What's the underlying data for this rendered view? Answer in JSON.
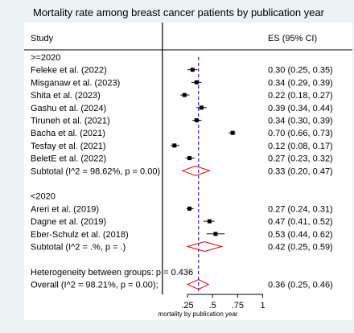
{
  "title": "Mortality rate  among breast cancer patients by publication year",
  "chart_data": {
    "type": "forest",
    "title": "Mortality rate  among breast cancer patients by publication year",
    "column_headers": {
      "study": "Study",
      "effect": "ES (95% CI)"
    },
    "xlabel": "mortality by publication year",
    "x_ticks": [
      0.25,
      0.5,
      0.75,
      1
    ],
    "x_tick_labels": [
      ".25",
      ".5",
      ".75",
      "1"
    ],
    "xlim": [
      -0.015,
      1.06
    ],
    "null_line": 0,
    "overall_line": 0.36,
    "colors": {
      "overall_line": "#1f1fb4",
      "diamond": "#e00000",
      "marker": "#000000"
    },
    "rows": [
      {
        "kind": "group",
        "label": ">=2020"
      },
      {
        "kind": "study",
        "label": "Feleke et al. (2022)",
        "es": 0.3,
        "lo": 0.25,
        "hi": 0.35,
        "text": "0.30 (0.25, 0.35)"
      },
      {
        "kind": "study",
        "label": "Misganaw et al. (2023)",
        "es": 0.34,
        "lo": 0.29,
        "hi": 0.39,
        "text": "0.34 (0.29, 0.39)"
      },
      {
        "kind": "study",
        "label": "Shita et al. (2023)",
        "es": 0.22,
        "lo": 0.18,
        "hi": 0.27,
        "text": "0.22 (0.18, 0.27)"
      },
      {
        "kind": "study",
        "label": "Gashu et al.  (2024)",
        "es": 0.39,
        "lo": 0.34,
        "hi": 0.44,
        "text": "0.39 (0.34, 0.44)"
      },
      {
        "kind": "study",
        "label": "Tiruneh et al. (2021)",
        "es": 0.34,
        "lo": 0.3,
        "hi": 0.39,
        "text": "0.34 (0.30, 0.39)"
      },
      {
        "kind": "study",
        "label": "Bacha  et al. (2021)",
        "es": 0.7,
        "lo": 0.66,
        "hi": 0.73,
        "text": "0.70 (0.66, 0.73)"
      },
      {
        "kind": "study",
        "label": "Tesfay et al. (2021)",
        "es": 0.12,
        "lo": 0.08,
        "hi": 0.17,
        "text": "0.12 (0.08, 0.17)"
      },
      {
        "kind": "study",
        "label": "BeletE et al. (2022)",
        "es": 0.27,
        "lo": 0.23,
        "hi": 0.32,
        "text": "0.27 (0.23, 0.32)"
      },
      {
        "kind": "subtotal",
        "label": "Subtotal  (I^2 = 98.62%, p = 0.00)",
        "es": 0.33,
        "lo": 0.2,
        "hi": 0.47,
        "text": "0.33 (0.20, 0.47)"
      },
      {
        "kind": "blank"
      },
      {
        "kind": "group",
        "label": "<2020"
      },
      {
        "kind": "study",
        "label": "Areri et al. (2019)",
        "es": 0.27,
        "lo": 0.24,
        "hi": 0.31,
        "text": "0.27 (0.24, 0.31)"
      },
      {
        "kind": "study",
        "label": "Dagne et al. (2019)",
        "es": 0.47,
        "lo": 0.41,
        "hi": 0.52,
        "text": "0.47 (0.41, 0.52)"
      },
      {
        "kind": "study",
        "label": "Eber-Schulz et al. (2018)",
        "es": 0.53,
        "lo": 0.44,
        "hi": 0.62,
        "text": "0.53 (0.44, 0.62)"
      },
      {
        "kind": "subtotal",
        "label": "Subtotal  (I^2 = .%, p = .)",
        "es": 0.42,
        "lo": 0.25,
        "hi": 0.59,
        "text": "0.42 (0.25, 0.59)"
      },
      {
        "kind": "blank"
      },
      {
        "kind": "note",
        "label": "Heterogeneity between groups:  p = 0.436"
      },
      {
        "kind": "overall",
        "label": "Overall  (I^2 = 98.21%, p = 0.00);",
        "es": 0.36,
        "lo": 0.25,
        "hi": 0.46,
        "text": "0.36 (0.25, 0.46)"
      }
    ]
  }
}
